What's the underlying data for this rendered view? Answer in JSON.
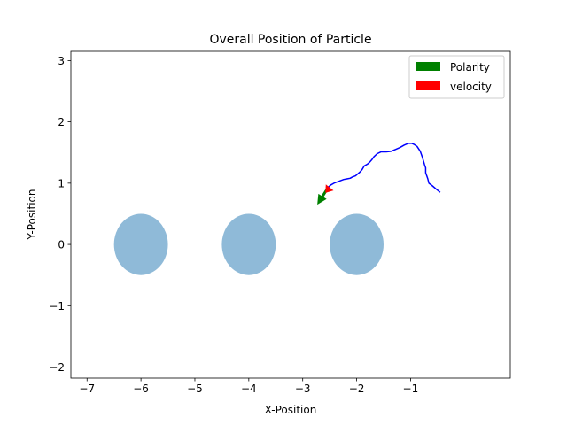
{
  "chart_data": {
    "type": "scatter",
    "title": "Overall Position of Particle",
    "xlabel": "X-Position",
    "ylabel": "Y-Position",
    "xlim": [
      -7.3,
      0.85
    ],
    "ylim": [
      -2.18,
      3.15
    ],
    "xticks": [
      -7,
      -6,
      -5,
      -4,
      -3,
      -2,
      -1
    ],
    "yticks": [
      -2,
      -1,
      0,
      1,
      2,
      3
    ],
    "grid": false,
    "legend": {
      "placement": "top-right",
      "entries": [
        {
          "label": "Polarity",
          "color": "#008000"
        },
        {
          "label": "velocity",
          "color": "#ff0000"
        }
      ]
    },
    "obstacles": [
      {
        "x": -6,
        "y": 0,
        "r": 0.5,
        "color": "#8fbad8"
      },
      {
        "x": -4,
        "y": 0,
        "r": 0.5,
        "color": "#8fbad8"
      },
      {
        "x": -2,
        "y": 0,
        "r": 0.5,
        "color": "#8fbad8"
      }
    ],
    "trajectory": {
      "color": "#0000ff",
      "x": [
        -0.45,
        -0.52,
        -0.6,
        -0.66,
        -0.68,
        -0.7,
        -0.72,
        -0.72,
        -0.74,
        -0.78,
        -0.82,
        -0.88,
        -0.93,
        -0.98,
        -1.04,
        -1.12,
        -1.2,
        -1.28,
        -1.36,
        -1.45,
        -1.55,
        -1.62,
        -1.68,
        -1.72,
        -1.76,
        -1.8,
        -1.86,
        -1.9,
        -1.94,
        -1.98,
        -2.02,
        -2.08,
        -2.12,
        -2.18,
        -2.24,
        -2.3,
        -2.36,
        -2.42,
        -2.48,
        -2.52,
        -2.55
      ],
      "y": [
        0.85,
        0.9,
        0.96,
        1.0,
        1.07,
        1.12,
        1.17,
        1.25,
        1.3,
        1.42,
        1.52,
        1.6,
        1.63,
        1.65,
        1.65,
        1.62,
        1.58,
        1.55,
        1.52,
        1.51,
        1.51,
        1.48,
        1.43,
        1.38,
        1.34,
        1.31,
        1.28,
        1.22,
        1.18,
        1.15,
        1.12,
        1.1,
        1.08,
        1.07,
        1.06,
        1.04,
        1.02,
        1.0,
        0.97,
        0.94,
        0.9
      ]
    },
    "arrows": [
      {
        "series": "Polarity",
        "color": "#008000",
        "x": -2.55,
        "y": 0.9,
        "dx": -0.18,
        "dy": -0.25
      },
      {
        "series": "velocity",
        "color": "#ff0000",
        "x": -2.5,
        "y": 0.93,
        "dx": -0.08,
        "dy": -0.09
      }
    ]
  }
}
